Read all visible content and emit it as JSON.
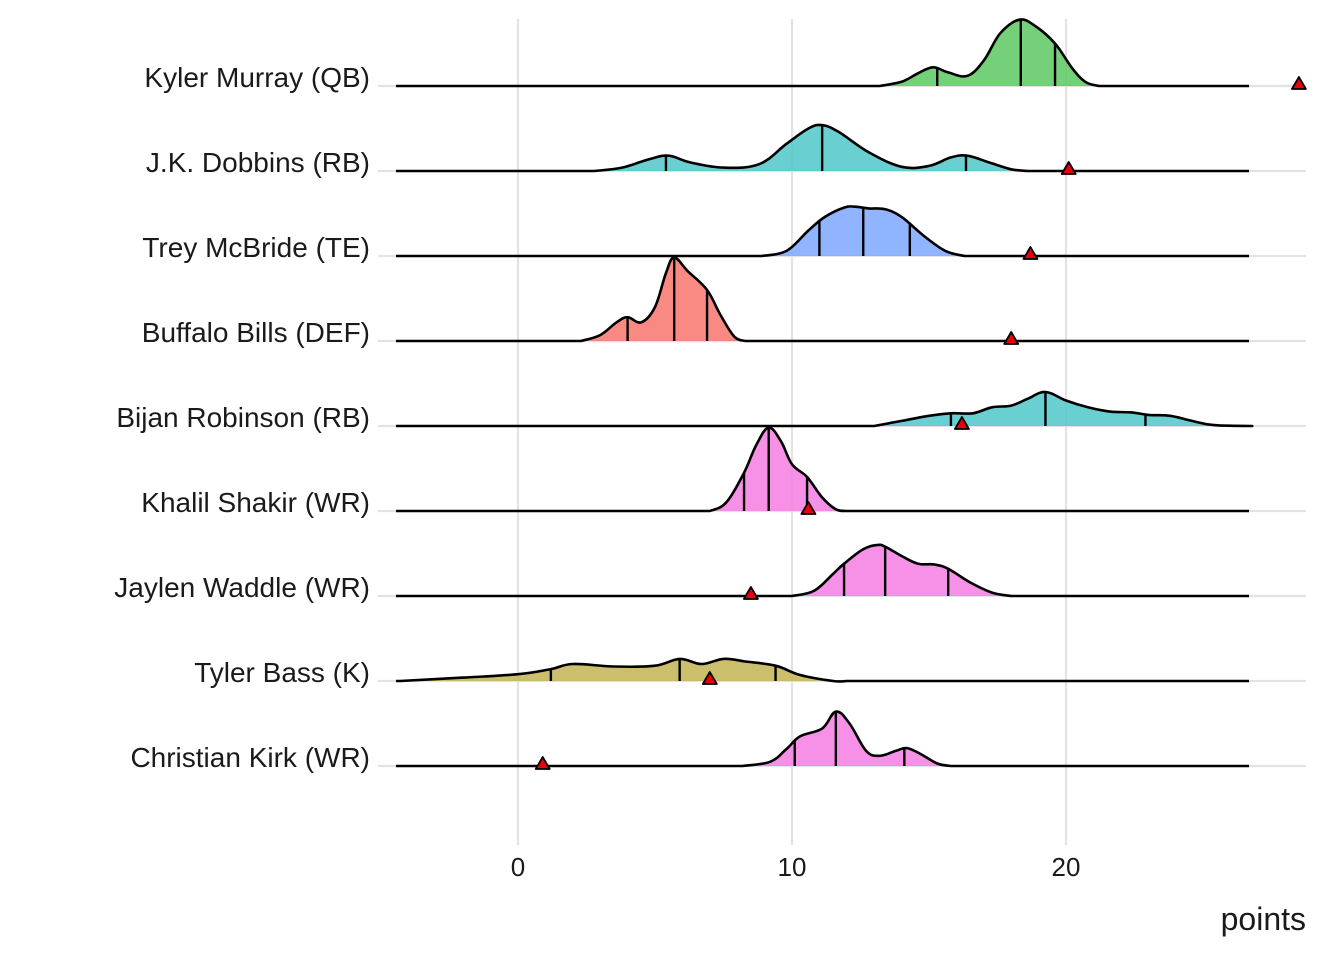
{
  "chart_data": {
    "type": "ridgeline",
    "title": "",
    "xlabel": "points",
    "ylabel": "",
    "xlim": [
      -4.5,
      28.8
    ],
    "xticks": [
      0,
      10,
      20
    ],
    "xtick_labels": [
      "0",
      "10",
      "20"
    ],
    "grid": true,
    "legend": "none",
    "marker": {
      "shape": "triangle",
      "fill": "#e8000b",
      "stroke": "#000000"
    },
    "series": [
      {
        "name": "Kyler Murray (QB)",
        "color": "#5dc863",
        "quantiles": [
          15.3,
          18.35,
          19.6
        ],
        "actual": 28.5,
        "density": [
          [
            13.2,
            0
          ],
          [
            14.0,
            0.05
          ],
          [
            14.6,
            0.15
          ],
          [
            15.15,
            0.22
          ],
          [
            15.7,
            0.16
          ],
          [
            16.4,
            0.12
          ],
          [
            17.0,
            0.3
          ],
          [
            17.6,
            0.62
          ],
          [
            18.3,
            0.78
          ],
          [
            18.9,
            0.7
          ],
          [
            19.6,
            0.5
          ],
          [
            20.2,
            0.22
          ],
          [
            20.7,
            0.05
          ],
          [
            21.2,
            0
          ]
        ]
      },
      {
        "name": "J.K. Dobbins (RB)",
        "color": "#4fc7c9",
        "quantiles": [
          5.4,
          11.1,
          16.35
        ],
        "actual": 20.1,
        "density": [
          [
            2.8,
            0
          ],
          [
            3.8,
            0.04
          ],
          [
            4.8,
            0.14
          ],
          [
            5.5,
            0.18
          ],
          [
            6.3,
            0.1
          ],
          [
            7.5,
            0.04
          ],
          [
            8.8,
            0.08
          ],
          [
            9.8,
            0.32
          ],
          [
            10.6,
            0.5
          ],
          [
            11.1,
            0.54
          ],
          [
            11.7,
            0.46
          ],
          [
            12.8,
            0.22
          ],
          [
            14.0,
            0.05
          ],
          [
            15.0,
            0.06
          ],
          [
            15.8,
            0.16
          ],
          [
            16.4,
            0.18
          ],
          [
            17.2,
            0.1
          ],
          [
            18.0,
            0.02
          ],
          [
            18.6,
            0
          ]
        ]
      },
      {
        "name": "Trey McBride (TE)",
        "color": "#7ca7ff",
        "quantiles": [
          11.0,
          12.6,
          14.3
        ],
        "actual": 18.7,
        "density": [
          [
            8.9,
            0
          ],
          [
            9.8,
            0.06
          ],
          [
            10.6,
            0.3
          ],
          [
            11.2,
            0.46
          ],
          [
            11.9,
            0.57
          ],
          [
            12.3,
            0.58
          ],
          [
            12.8,
            0.56
          ],
          [
            13.4,
            0.55
          ],
          [
            14.0,
            0.46
          ],
          [
            14.8,
            0.24
          ],
          [
            15.6,
            0.06
          ],
          [
            16.3,
            0
          ]
        ]
      },
      {
        "name": "Buffalo Bills (DEF)",
        "color": "#f8766d",
        "quantiles": [
          4.0,
          5.7,
          6.9
        ],
        "actual": 18.0,
        "density": [
          [
            2.3,
            0
          ],
          [
            3.0,
            0.07
          ],
          [
            3.6,
            0.22
          ],
          [
            4.0,
            0.28
          ],
          [
            4.5,
            0.22
          ],
          [
            5.0,
            0.4
          ],
          [
            5.4,
            0.8
          ],
          [
            5.7,
            0.98
          ],
          [
            6.2,
            0.82
          ],
          [
            6.9,
            0.6
          ],
          [
            7.4,
            0.3
          ],
          [
            7.9,
            0.05
          ],
          [
            8.3,
            0
          ]
        ]
      },
      {
        "name": "Bijan Robinson (RB)",
        "color": "#4fc7c9",
        "quantiles": [
          15.8,
          19.25,
          22.9
        ],
        "actual": 16.2,
        "density": [
          [
            13.0,
            0
          ],
          [
            14.0,
            0.06
          ],
          [
            15.0,
            0.12
          ],
          [
            15.8,
            0.15
          ],
          [
            16.6,
            0.15
          ],
          [
            17.3,
            0.22
          ],
          [
            18.0,
            0.24
          ],
          [
            18.6,
            0.32
          ],
          [
            19.25,
            0.4
          ],
          [
            20.0,
            0.3
          ],
          [
            20.8,
            0.22
          ],
          [
            21.6,
            0.17
          ],
          [
            22.4,
            0.16
          ],
          [
            23.0,
            0.13
          ],
          [
            23.8,
            0.12
          ],
          [
            24.6,
            0.06
          ],
          [
            25.4,
            0.01
          ],
          [
            26.8,
            0
          ]
        ]
      },
      {
        "name": "Khalil Shakir (WR)",
        "color": "#f67ee3",
        "quantiles": [
          8.25,
          9.15,
          10.55
        ],
        "actual": 10.6,
        "density": [
          [
            7.0,
            0
          ],
          [
            7.6,
            0.1
          ],
          [
            8.25,
            0.45
          ],
          [
            8.7,
            0.78
          ],
          [
            9.15,
            0.98
          ],
          [
            9.6,
            0.82
          ],
          [
            10.0,
            0.55
          ],
          [
            10.55,
            0.4
          ],
          [
            11.1,
            0.16
          ],
          [
            11.6,
            0.02
          ],
          [
            12.0,
            0
          ]
        ]
      },
      {
        "name": "Jaylen Waddle (WR)",
        "color": "#f67ee3",
        "quantiles": [
          11.9,
          13.4,
          15.7
        ],
        "actual": 8.5,
        "density": [
          [
            10.0,
            0
          ],
          [
            10.8,
            0.06
          ],
          [
            11.5,
            0.26
          ],
          [
            11.9,
            0.38
          ],
          [
            12.6,
            0.55
          ],
          [
            13.1,
            0.6
          ],
          [
            13.4,
            0.58
          ],
          [
            14.0,
            0.47
          ],
          [
            14.6,
            0.38
          ],
          [
            15.2,
            0.37
          ],
          [
            15.7,
            0.32
          ],
          [
            16.5,
            0.16
          ],
          [
            17.3,
            0.04
          ],
          [
            18.0,
            0
          ]
        ]
      },
      {
        "name": "Tyler Bass (K)",
        "color": "#c2b352",
        "quantiles": [
          1.2,
          5.9,
          9.4
        ],
        "actual": 7.0,
        "density": [
          [
            -4.3,
            0
          ],
          [
            -2.0,
            0.04
          ],
          [
            0.0,
            0.08
          ],
          [
            1.2,
            0.14
          ],
          [
            2.0,
            0.2
          ],
          [
            3.5,
            0.17
          ],
          [
            5.0,
            0.18
          ],
          [
            5.9,
            0.26
          ],
          [
            6.7,
            0.2
          ],
          [
            7.5,
            0.26
          ],
          [
            8.3,
            0.23
          ],
          [
            9.4,
            0.18
          ],
          [
            10.3,
            0.07
          ],
          [
            11.5,
            0
          ],
          [
            12.0,
            0
          ]
        ]
      },
      {
        "name": "Christian Kirk (WR)",
        "color": "#f67ee3",
        "quantiles": [
          10.1,
          11.6,
          14.1
        ],
        "actual": 0.9,
        "density": [
          [
            8.2,
            0
          ],
          [
            9.2,
            0.05
          ],
          [
            9.8,
            0.2
          ],
          [
            10.3,
            0.35
          ],
          [
            11.1,
            0.44
          ],
          [
            11.6,
            0.64
          ],
          [
            12.1,
            0.5
          ],
          [
            12.7,
            0.18
          ],
          [
            13.2,
            0.12
          ],
          [
            13.8,
            0.18
          ],
          [
            14.2,
            0.21
          ],
          [
            14.7,
            0.14
          ],
          [
            15.3,
            0.03
          ],
          [
            15.8,
            0
          ]
        ]
      }
    ]
  }
}
